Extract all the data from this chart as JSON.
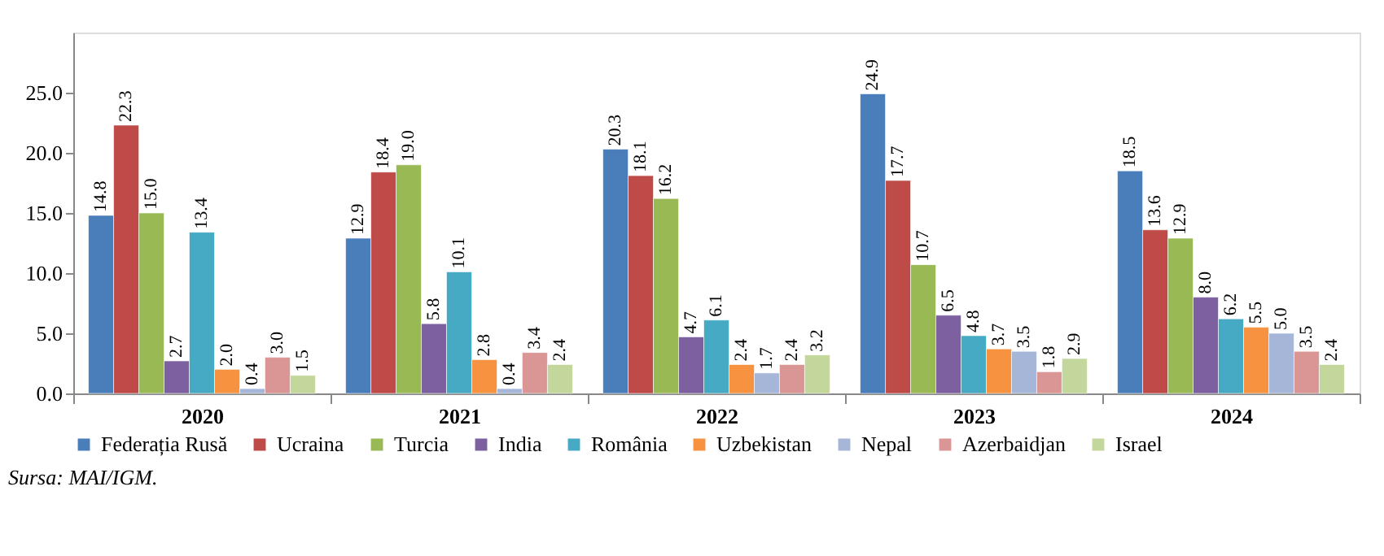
{
  "chart_data": {
    "type": "bar",
    "categories": [
      "2020",
      "2021",
      "2022",
      "2023",
      "2024"
    ],
    "series": [
      {
        "name": "Federația Rusă",
        "color": "#4a7ebb",
        "values": [
          14.8,
          12.9,
          20.3,
          24.9,
          18.5
        ],
        "value_labels": [
          "14.8",
          "12.9",
          "20.3",
          "24.9",
          "18.5"
        ]
      },
      {
        "name": "Ucraina",
        "color": "#be4b48",
        "values": [
          22.3,
          18.4,
          18.1,
          17.7,
          13.6
        ],
        "value_labels": [
          "22.3",
          "18.4",
          "18.1",
          "17.7",
          "13.6"
        ]
      },
      {
        "name": "Turcia",
        "color": "#98b954",
        "values": [
          15,
          19,
          16.2,
          10.7,
          12.9
        ],
        "value_labels": [
          "15.0",
          "19.0",
          "16.2",
          "10.7",
          "12.9"
        ]
      },
      {
        "name": "India",
        "color": "#7d60a0",
        "values": [
          2.7,
          5.8,
          4.7,
          6.5,
          8
        ],
        "value_labels": [
          "2.7",
          "5.8",
          "4.7",
          "6.5",
          "8.0"
        ]
      },
      {
        "name": "România",
        "color": "#46aac5",
        "values": [
          13.4,
          10.1,
          6.1,
          4.8,
          6.2
        ],
        "value_labels": [
          "13.4",
          "10.1",
          "6.1",
          "4.8",
          "6.2"
        ]
      },
      {
        "name": "Uzbekistan",
        "color": "#f69240",
        "values": [
          2,
          2.8,
          2.4,
          3.7,
          5.5
        ],
        "value_labels": [
          "2.0",
          "2.8",
          "2.4",
          "3.7",
          "5.5"
        ]
      },
      {
        "name": "Nepal",
        "color": "#a5b6d9",
        "values": [
          0.4,
          0.4,
          1.7,
          3.5,
          5
        ],
        "value_labels": [
          "0.4",
          "0.4",
          "1.7",
          "3.5",
          "5.0"
        ]
      },
      {
        "name": "Azerbaidjan",
        "color": "#d99694",
        "values": [
          3,
          3.4,
          2.4,
          1.8,
          3.5
        ],
        "value_labels": [
          "3.0",
          "3.4",
          "2.4",
          "1.8",
          "3.5"
        ]
      },
      {
        "name": "Israel",
        "color": "#c3d69b",
        "values": [
          1.5,
          2.4,
          3.2,
          2.9,
          2.4
        ],
        "value_labels": [
          "1.5",
          "2.4",
          "3.2",
          "2.9",
          "2.4"
        ]
      }
    ],
    "ylim": [
      0,
      30
    ],
    "yticks": [
      {
        "value": 0,
        "label": "0.0"
      },
      {
        "value": 5,
        "label": "5.0"
      },
      {
        "value": 10,
        "label": "10.0"
      },
      {
        "value": 15,
        "label": "15.0"
      },
      {
        "value": 20,
        "label": "20.0"
      },
      {
        "value": 25,
        "label": "25.0"
      }
    ],
    "grid": false,
    "legend": "bottom",
    "annotations": [
      "Sursa: MAI/IGM."
    ]
  }
}
